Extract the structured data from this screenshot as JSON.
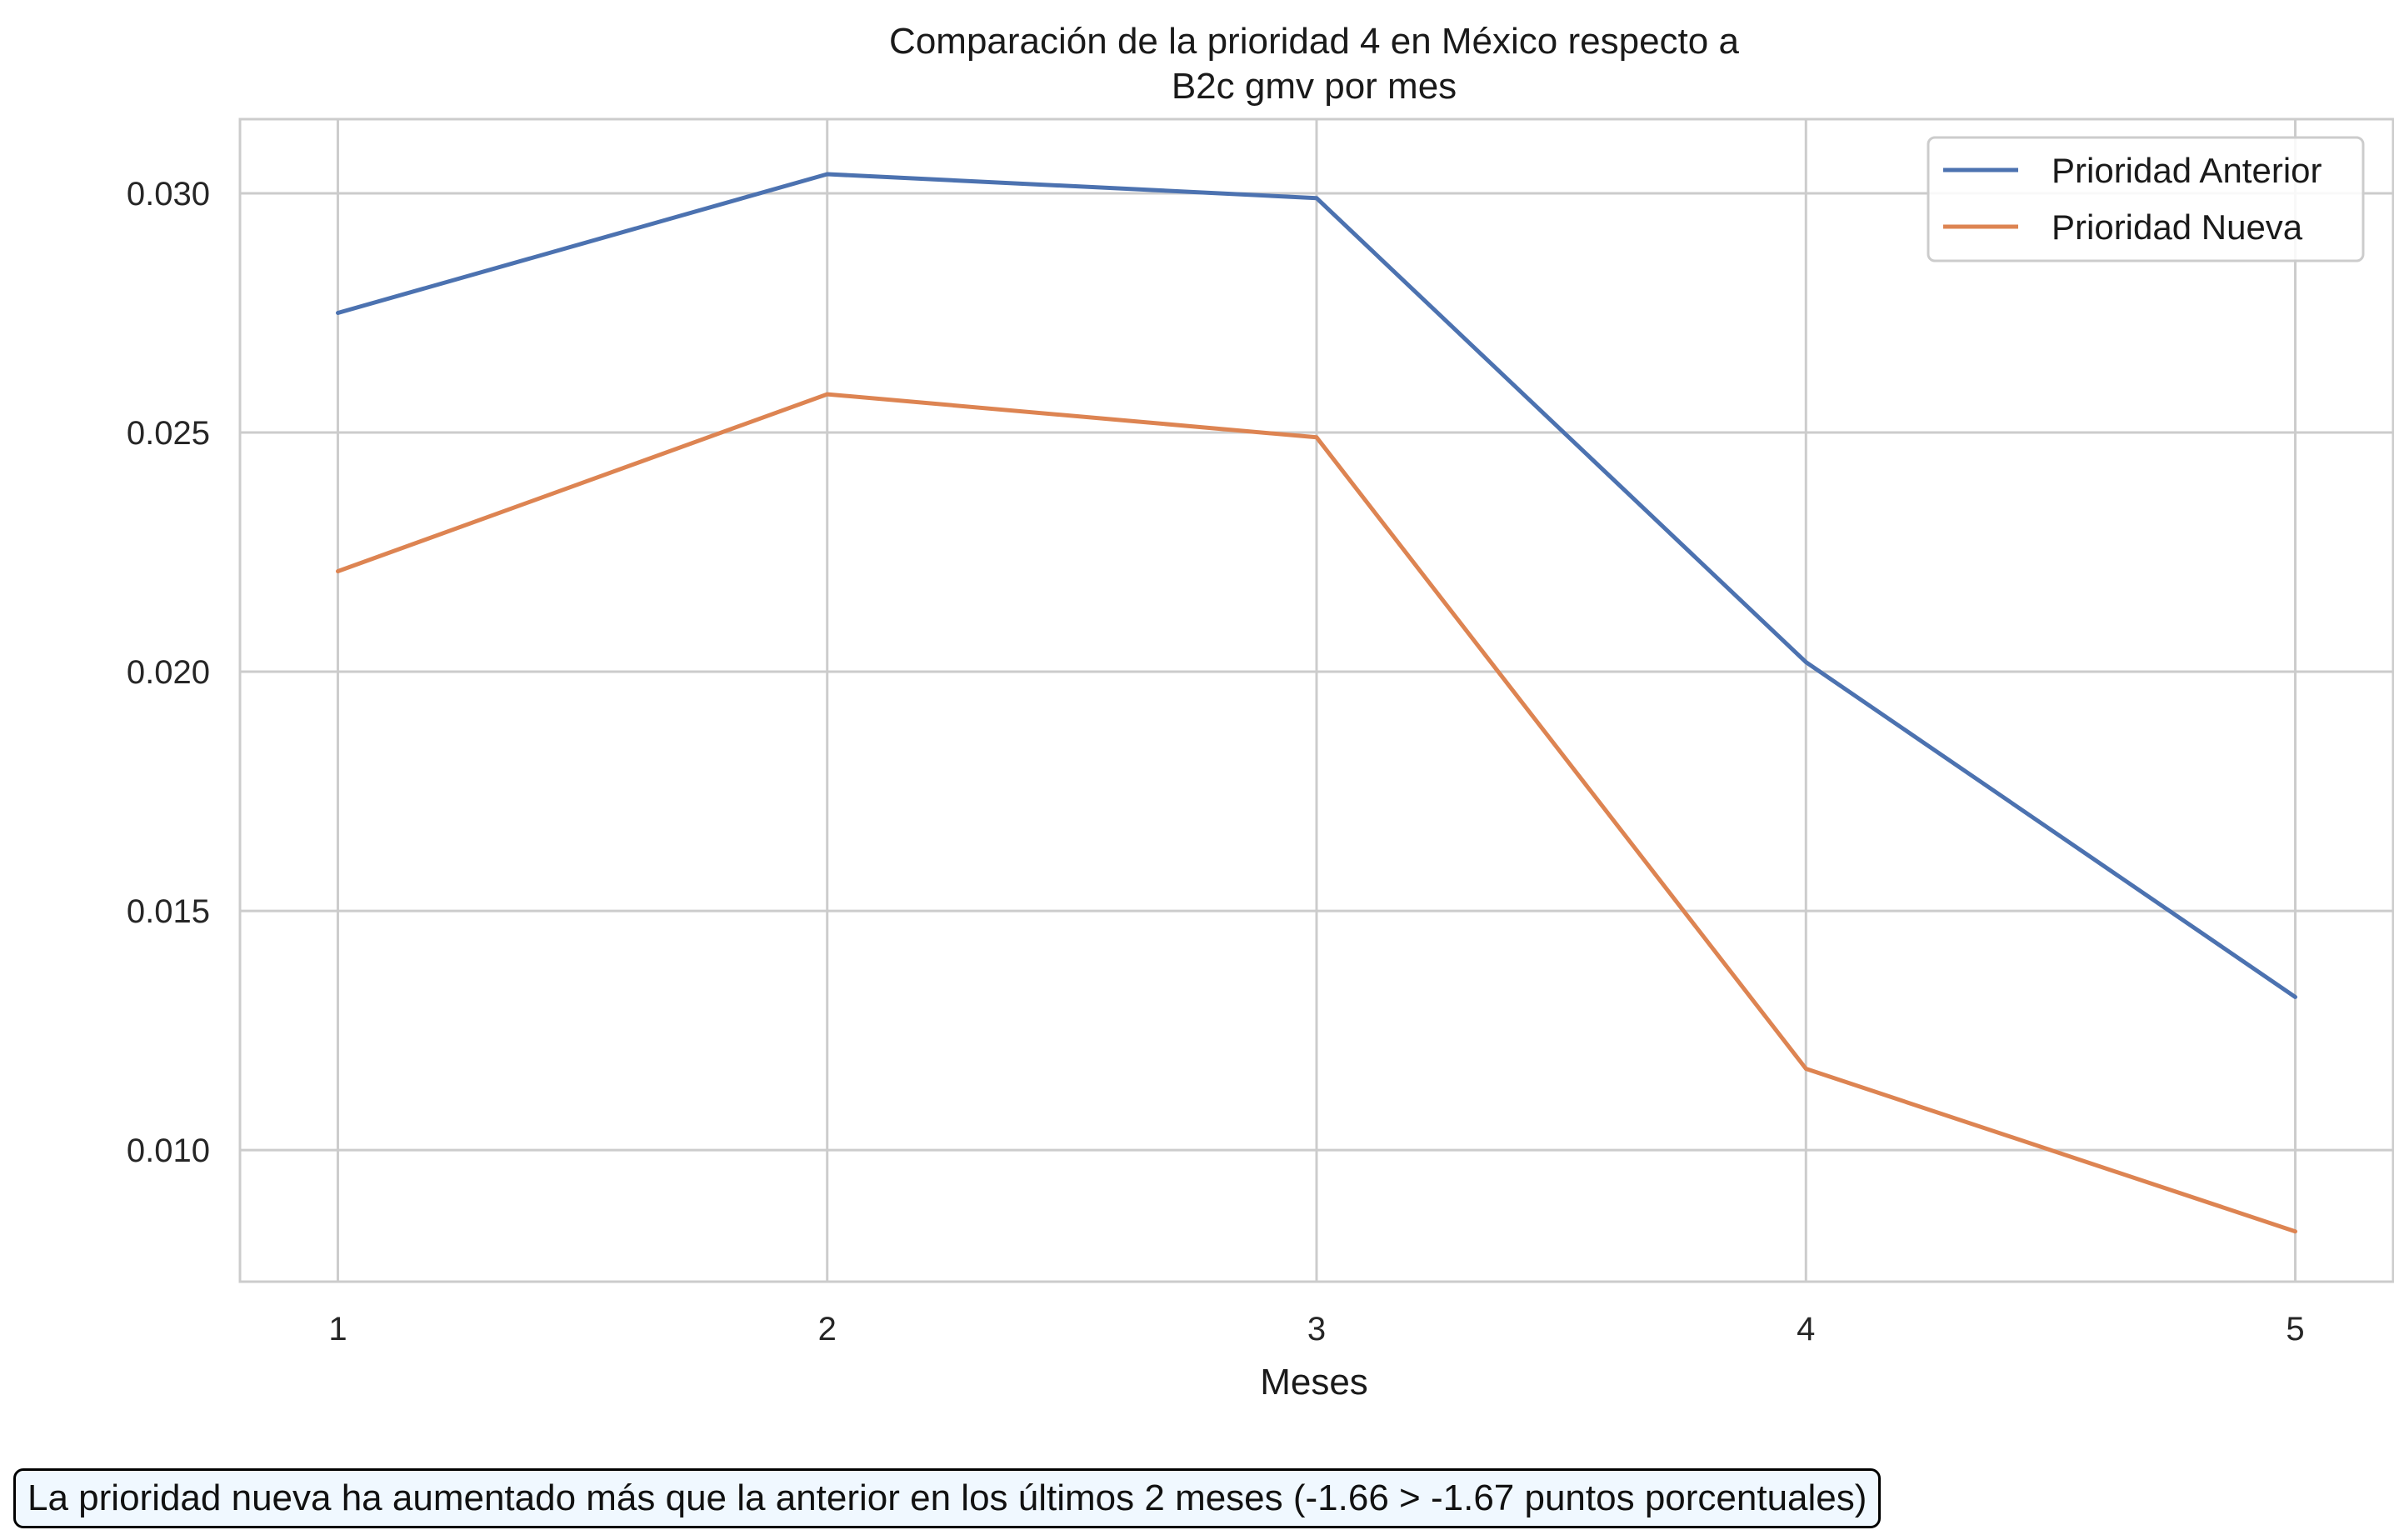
{
  "chart_data": {
    "type": "line",
    "title": "Comparación de la prioridad 4 en México respecto a\nB2c gmv por mes",
    "xlabel": "Meses",
    "ylabel": "",
    "x": [
      1,
      2,
      3,
      4,
      5
    ],
    "xticks": [
      "1",
      "2",
      "3",
      "4",
      "5"
    ],
    "yticks": [
      "0.010",
      "0.015",
      "0.020",
      "0.025",
      "0.030"
    ],
    "ytick_values": [
      0.01,
      0.015,
      0.02,
      0.025,
      0.03
    ],
    "xlim": [
      0.8,
      5.2
    ],
    "ylim": [
      0.00725,
      0.03155
    ],
    "grid": true,
    "legend_position": "top-right",
    "series": [
      {
        "name": "Prioridad Anterior",
        "color": "#4c72b0",
        "values": [
          0.0275,
          0.0304,
          0.0299,
          0.0202,
          0.0132
        ]
      },
      {
        "name": "Prioridad Nueva",
        "color": "#dd8452",
        "values": [
          0.0221,
          0.0258,
          0.0249,
          0.0117,
          0.0083
        ]
      }
    ]
  },
  "annotation": {
    "text": "La prioridad nueva ha aumentado más que la anterior en los últimos 2 meses (-1.66 > -1.67 puntos porcentuales)"
  }
}
